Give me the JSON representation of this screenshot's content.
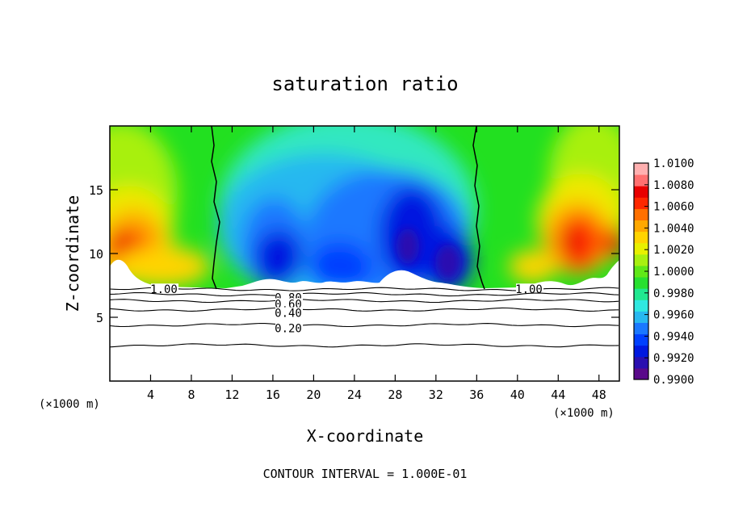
{
  "chart_data": {
    "type": "heatmap",
    "title": "saturation ratio",
    "xlabel": "X-coordinate",
    "ylabel": "Z-coordinate",
    "x_unit": "(×1000 m)",
    "y_unit": "(×1000 m)",
    "xlim": [
      0,
      50
    ],
    "ylim": [
      0,
      20
    ],
    "x_ticks": [
      4,
      8,
      12,
      16,
      20,
      24,
      28,
      32,
      36,
      40,
      44,
      48
    ],
    "y_ticks": [
      5,
      10,
      15
    ],
    "colorbar": {
      "min": 0.99,
      "max": 1.01,
      "labels": [
        "1.0100",
        "1.0080",
        "1.0060",
        "1.0040",
        "1.0020",
        "1.0000",
        "0.9980",
        "0.9960",
        "0.9940",
        "0.9920",
        "0.9900"
      ],
      "colors": [
        "#5a0a8a",
        "#2a0fb0",
        "#0018e0",
        "#0040ff",
        "#1a78ff",
        "#28b8f0",
        "#30e8e0",
        "#20e890",
        "#28e030",
        "#60e818",
        "#a8f010",
        "#e8f000",
        "#ffd400",
        "#ffa800",
        "#ff7000",
        "#ff2800",
        "#e80000",
        "#ff7070",
        "#ffb0b0"
      ]
    },
    "contour_lines": [
      {
        "level": "1.00",
        "z": 7.2
      },
      {
        "level": "0.80",
        "z": 6.8
      },
      {
        "level": "0.60",
        "z": 6.3
      },
      {
        "level": "0.40",
        "z": 5.6
      },
      {
        "level": "0.20",
        "z": 4.4
      },
      {
        "level": "",
        "z": 2.8
      }
    ],
    "saturation_boundaries_x": [
      10.2,
      36.6
    ],
    "footer": "CONTOUR INTERVAL = 1.000E-01"
  }
}
